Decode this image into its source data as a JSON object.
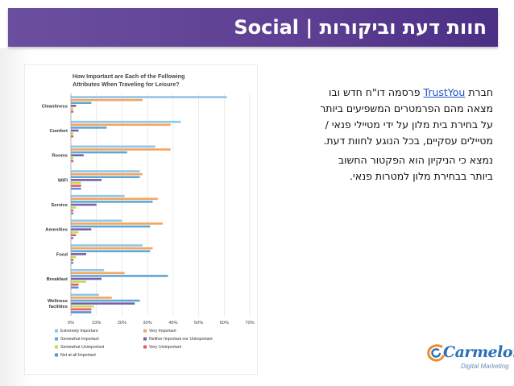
{
  "header": {
    "title": "Social | חוות דעת וביקורות"
  },
  "body_text": {
    "p1_prefix": "חברת ",
    "p1_link": "TrustYou",
    "p1_rest_line1": " פרסמה דו\"ח חדש ובו",
    "p1_line2": "מצאה מהם הפרמטרים המשפיעים ביותר",
    "p1_line3": "על בחירת בית מלון על ידי מטיילי פנאי /",
    "p1_line4": "מטיילים עסקיים, בכל הנוגע לחוות דעת.",
    "p2_line1": "נמצא כי הניקיון הוא הפקטור החשוב",
    "p2_line2": "ביותר בבחירת מלון למטרות פנאי."
  },
  "logo": {
    "name": "Carmelon",
    "subtitle": "Digital Marketing",
    "icon": "carmelon-swirl-icon"
  },
  "chart_data": {
    "type": "bar",
    "orientation": "horizontal",
    "title_lines": [
      "How Important are Each of the Following",
      "Attributes When Traveling for Leisure?"
    ],
    "categories": [
      "Cleanliness",
      "Comfort",
      "Rooms",
      "WIFI",
      "Service",
      "Amenities",
      "Food",
      "Breakfast",
      "Wellness facilities"
    ],
    "category_lines": [
      [
        "Cleanliness"
      ],
      [
        "Comfort"
      ],
      [
        "Rooms"
      ],
      [
        "WIFI"
      ],
      [
        "Service"
      ],
      [
        "Amenities"
      ],
      [
        "Food"
      ],
      [
        "Breakfast"
      ],
      [
        "Wellness",
        "facilities"
      ]
    ],
    "xlim": [
      0,
      70
    ],
    "xticks": [
      "0%",
      "10%",
      "20%",
      "30%",
      "40%",
      "50%",
      "60%",
      "70%"
    ],
    "grid": true,
    "legend_position": "bottom",
    "series": [
      {
        "name": "Extremely Important",
        "color": "#8fc5e8",
        "values": [
          61,
          43,
          33,
          27,
          21,
          20,
          28,
          13,
          11
        ]
      },
      {
        "name": "Very Important",
        "color": "#f4a55e",
        "values": [
          28,
          39,
          39,
          28,
          34,
          36,
          32,
          21,
          16
        ]
      },
      {
        "name": "Somewhat Important",
        "color": "#5ea8d6",
        "values": [
          8,
          14,
          22,
          27,
          32,
          31,
          31,
          38,
          27
        ]
      },
      {
        "name": "Neither Important nor Unimportant",
        "color": "#7a5fa8",
        "values": [
          2,
          3,
          5,
          12,
          10,
          8,
          6,
          12,
          25
        ]
      },
      {
        "name": "Somewhat Unimportant",
        "color": "#c8d85a",
        "values": [
          1,
          1,
          1,
          4,
          2,
          3,
          2,
          6,
          9
        ]
      },
      {
        "name": "Very Unimportant",
        "color": "#e65a5a",
        "values": [
          1,
          1,
          1,
          4,
          1,
          2,
          1,
          3,
          8
        ]
      },
      {
        "name": "Not at all Important",
        "color": "#5b8fd9",
        "values": [
          0,
          0,
          0,
          4,
          1,
          1,
          1,
          3,
          8
        ]
      }
    ]
  }
}
